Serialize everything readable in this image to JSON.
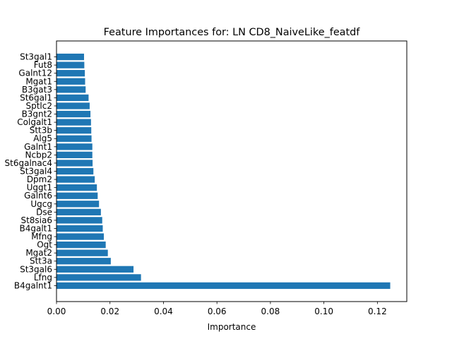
{
  "chart_data": {
    "type": "bar",
    "orientation": "horizontal",
    "title": "Feature Importances for: LN CD8_NaiveLike_featdf",
    "xlabel": "Importance",
    "ylabel": "",
    "xlim": [
      0,
      0.131
    ],
    "xticks": [
      "0.00",
      "0.02",
      "0.04",
      "0.06",
      "0.08",
      "0.10",
      "0.12"
    ],
    "xtick_values": [
      0,
      0.02,
      0.04,
      0.06,
      0.08,
      0.1,
      0.12
    ],
    "grid": false,
    "bar_color": "#1f77b4",
    "categories": [
      "B4galnt1",
      "Lfng",
      "St3gal6",
      "Stt3a",
      "Mgat2",
      "Ogt",
      "Mfng",
      "B4galt1",
      "St8sia6",
      "Dse",
      "Ugcg",
      "Galnt6",
      "Uggt1",
      "Dpm2",
      "St3gal4",
      "St6galnac4",
      "Ncbp2",
      "Galnt1",
      "Alg5",
      "Stt3b",
      "Colgalt1",
      "B3gnt2",
      "Sptlc2",
      "St6gal1",
      "B3gat3",
      "Mgat1",
      "Galnt12",
      "Fut8",
      "St3gal1"
    ],
    "values": [
      0.1248,
      0.0316,
      0.0288,
      0.0203,
      0.0192,
      0.0184,
      0.0177,
      0.0173,
      0.0171,
      0.0166,
      0.0159,
      0.0154,
      0.0151,
      0.0143,
      0.0138,
      0.0135,
      0.0134,
      0.0134,
      0.0131,
      0.013,
      0.0129,
      0.0127,
      0.0124,
      0.012,
      0.0109,
      0.0107,
      0.0106,
      0.0104,
      0.0103
    ]
  }
}
